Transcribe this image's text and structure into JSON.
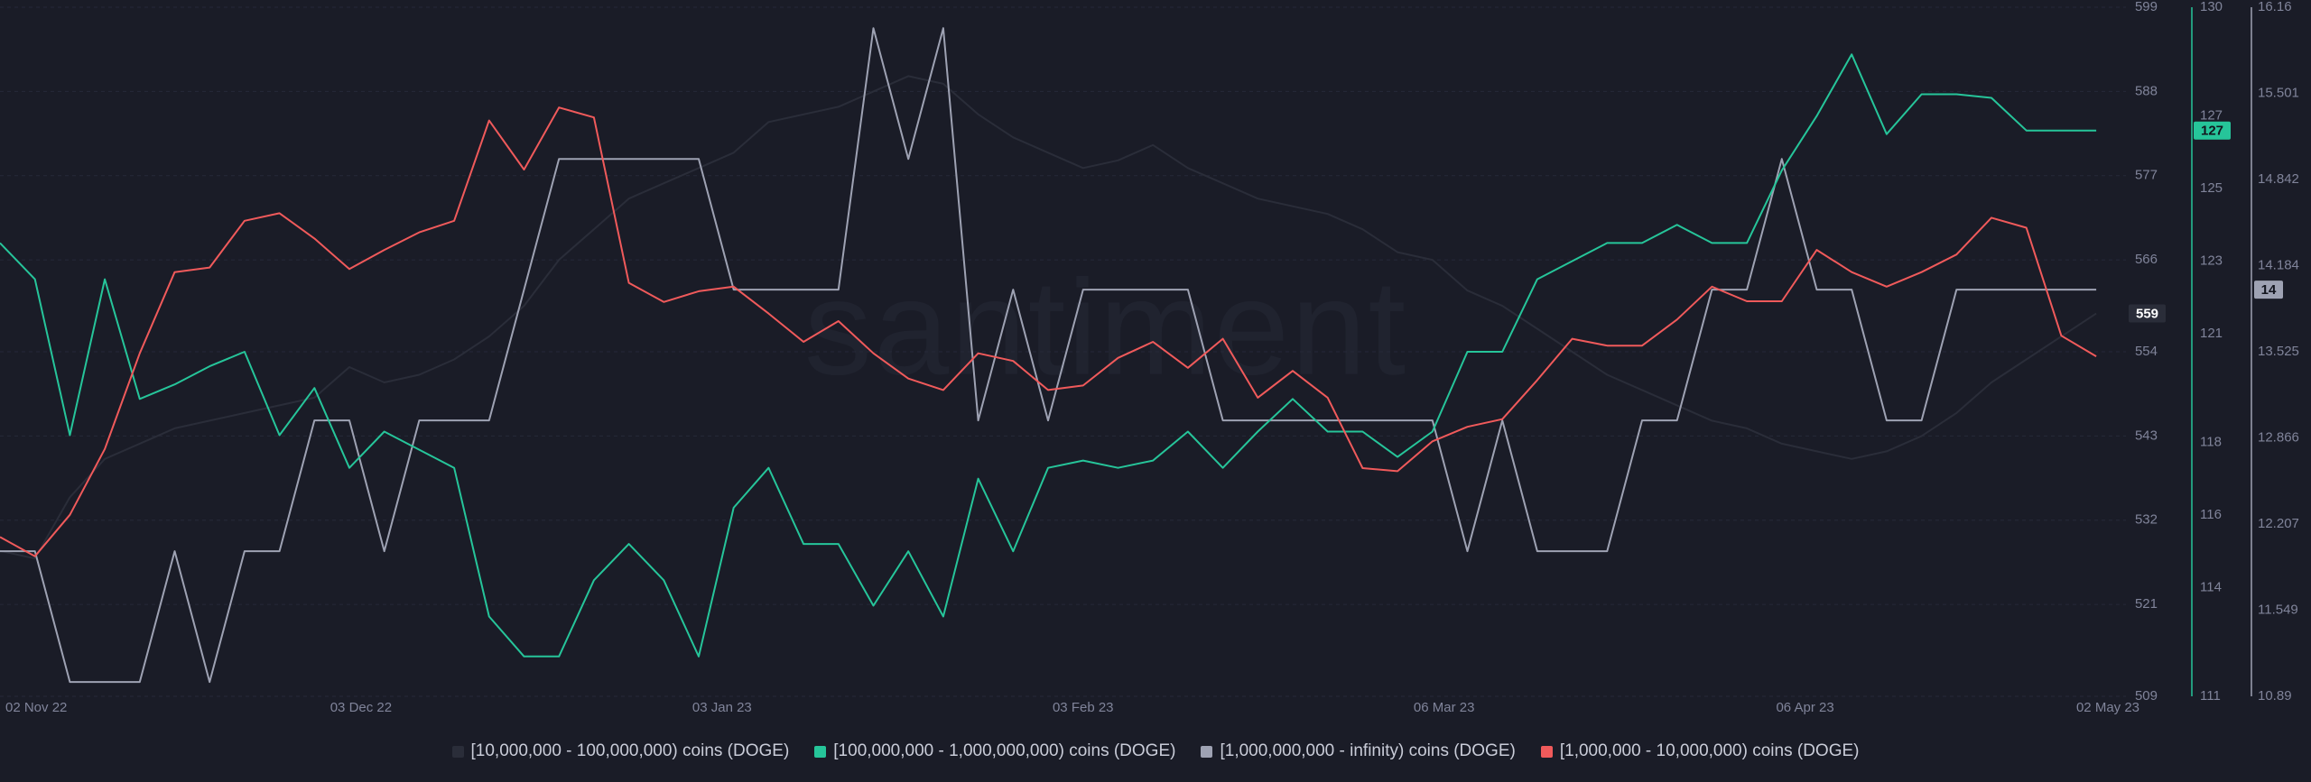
{
  "watermark": "santiment",
  "chart_data": {
    "type": "line",
    "x": [
      "2022-11-02",
      "2022-11-05",
      "2022-11-08",
      "2022-11-11",
      "2022-11-14",
      "2022-11-17",
      "2022-11-20",
      "2022-11-23",
      "2022-11-26",
      "2022-11-29",
      "2022-12-02",
      "2022-12-05",
      "2022-12-08",
      "2022-12-11",
      "2022-12-14",
      "2022-12-17",
      "2022-12-20",
      "2022-12-23",
      "2022-12-26",
      "2022-12-29",
      "2023-01-01",
      "2023-01-04",
      "2023-01-07",
      "2023-01-10",
      "2023-01-13",
      "2023-01-16",
      "2023-01-19",
      "2023-01-22",
      "2023-01-25",
      "2023-01-28",
      "2023-01-31",
      "2023-02-03",
      "2023-02-06",
      "2023-02-09",
      "2023-02-12",
      "2023-02-15",
      "2023-02-18",
      "2023-02-21",
      "2023-02-24",
      "2023-02-27",
      "2023-03-02",
      "2023-03-05",
      "2023-03-08",
      "2023-03-11",
      "2023-03-14",
      "2023-03-17",
      "2023-03-20",
      "2023-03-23",
      "2023-03-26",
      "2023-03-29",
      "2023-04-01",
      "2023-04-04",
      "2023-04-07",
      "2023-04-10",
      "2023-04-13",
      "2023-04-16",
      "2023-04-19",
      "2023-04-22",
      "2023-04-25",
      "2023-04-28",
      "2023-05-01"
    ],
    "xlim": [
      "2022-11-02",
      "2023-05-02"
    ],
    "xticks": [
      {
        "value": "2022-11-02",
        "label": "02 Nov 22"
      },
      {
        "value": "2022-12-03",
        "label": "03 Dec 22"
      },
      {
        "value": "2023-01-03",
        "label": "03 Jan 23"
      },
      {
        "value": "2023-02-03",
        "label": "03 Feb 23"
      },
      {
        "value": "2023-03-06",
        "label": "06 Mar 23"
      },
      {
        "value": "2023-04-06",
        "label": "06 Apr 23"
      },
      {
        "value": "2023-05-02",
        "label": "02 May 23"
      }
    ],
    "ylim": [
      509,
      599
    ],
    "yticks": [
      599,
      588,
      577,
      566,
      554,
      543,
      532,
      521,
      509
    ],
    "y2lim": [
      111,
      130
    ],
    "y2ticks": [
      130,
      127,
      125,
      123,
      121,
      118,
      116,
      114,
      111
    ],
    "y3lim": [
      10.89,
      16.16
    ],
    "y3ticks": [
      16.16,
      15.501,
      14.842,
      14.184,
      13.525,
      12.866,
      12.207,
      11.549,
      10.89
    ],
    "grid": true,
    "series": [
      {
        "name": "[10,000,000 - 100,000,000) coins (DOGE)",
        "color": "#2a2d39",
        "axis": "y",
        "end_label": "559",
        "values": [
          528,
          527,
          535,
          540,
          542,
          544,
          545,
          546,
          547,
          548,
          552,
          550,
          551,
          553,
          556,
          560,
          566,
          570,
          574,
          576,
          578,
          580,
          584,
          585,
          586,
          588,
          590,
          589,
          585,
          582,
          580,
          578,
          579,
          581,
          578,
          576,
          574,
          573,
          572,
          570,
          567,
          566,
          562,
          560,
          557,
          554,
          551,
          549,
          547,
          545,
          544,
          542,
          541,
          540,
          541,
          543,
          546,
          550,
          553,
          556,
          559
        ]
      },
      {
        "name": "[100,000,000 - 1,000,000,000) coins (DOGE)",
        "color": "#26c59a",
        "axis": "y2",
        "end_label": "127",
        "values": [
          123.5,
          122.5,
          118.2,
          122.5,
          119.2,
          119.6,
          120.1,
          120.5,
          118.2,
          119.5,
          117.3,
          118.3,
          117.8,
          117.3,
          113.2,
          112.1,
          112.1,
          114.2,
          115.2,
          114.2,
          112.1,
          116.2,
          117.3,
          115.2,
          115.2,
          113.5,
          115,
          113.2,
          117,
          115,
          117.3,
          117.5,
          117.3,
          117.5,
          118.3,
          117.3,
          118.3,
          119.2,
          118.3,
          118.3,
          117.6,
          118.3,
          120.5,
          120.5,
          122.5,
          123,
          123.5,
          123.5,
          124,
          123.5,
          123.5,
          125.5,
          127,
          128.7,
          126.5,
          127.6,
          127.6,
          127.5,
          126.6,
          126.6,
          126.6
        ]
      },
      {
        "name": "[1,000,000,000 - infinity) coins (DOGE)",
        "color": "#9ea2b3",
        "axis": "y3",
        "end_label": "14",
        "values": [
          12,
          12,
          11,
          11,
          11,
          12,
          11,
          12,
          12,
          13,
          13,
          12,
          13,
          13,
          13,
          14,
          15,
          15,
          15,
          15,
          15,
          14,
          14,
          14,
          14,
          16,
          15,
          16,
          13,
          14,
          13,
          14,
          14,
          14,
          14,
          13,
          13,
          13,
          13,
          13,
          13,
          13,
          12,
          13,
          12,
          12,
          12,
          13,
          13,
          14,
          14,
          15,
          14,
          14,
          13,
          13,
          14,
          14,
          14,
          14,
          14
        ]
      },
      {
        "name": "[1,000,000 - 10,000,000) coins (DOGE)",
        "color": "#f05a5b",
        "axis": "y",
        "values": [
          529.8,
          527.3,
          532.7,
          541.3,
          553.8,
          564.4,
          565,
          571.1,
          572.1,
          568.8,
          564.8,
          567.3,
          569.6,
          571.1,
          584.2,
          577.8,
          585.9,
          584.6,
          563,
          560.5,
          561.9,
          562.5,
          559,
          555.3,
          558,
          553.8,
          550.5,
          549,
          553.8,
          552.8,
          549,
          549.6,
          553.2,
          555.3,
          551.9,
          555.7,
          548,
          551.5,
          548,
          538.8,
          538.4,
          542.3,
          544.2,
          545.2,
          550.3,
          555.7,
          554.8,
          554.8,
          558.2,
          562.5,
          560.6,
          560.6,
          567.3,
          564.4,
          562.5,
          564.4,
          566.7,
          571.5,
          570.2,
          556.1,
          553.4
        ]
      }
    ]
  }
}
